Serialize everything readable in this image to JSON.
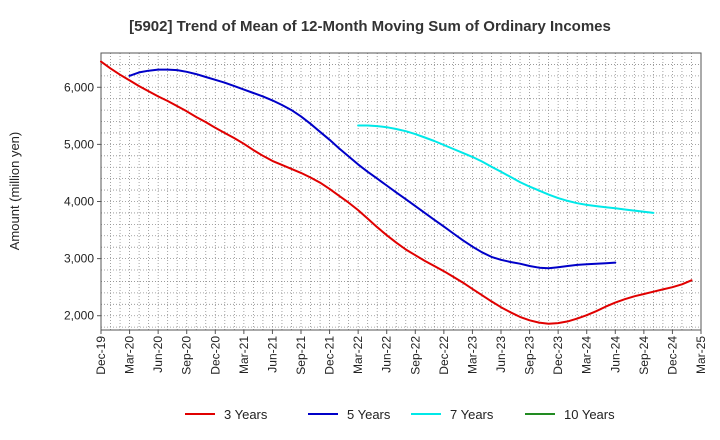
{
  "chart_data": {
    "type": "line",
    "title": "[5902]  Trend of Mean of 12-Month Moving Sum of Ordinary Incomes",
    "xlabel": "",
    "ylabel": "Amount (million yen)",
    "ylim": [
      1750,
      6600
    ],
    "yticks": [
      2000,
      3000,
      4000,
      5000,
      6000
    ],
    "ytick_labels": [
      "2,000",
      "3,000",
      "4,000",
      "5,000",
      "6,000"
    ],
    "grid": true,
    "legend_position": "bottom",
    "x_months": [
      "Dec-19",
      "Jan-20",
      "Feb-20",
      "Mar-20",
      "Apr-20",
      "May-20",
      "Jun-20",
      "Jul-20",
      "Aug-20",
      "Sep-20",
      "Oct-20",
      "Nov-20",
      "Dec-20",
      "Jan-21",
      "Feb-21",
      "Mar-21",
      "Apr-21",
      "May-21",
      "Jun-21",
      "Jul-21",
      "Aug-21",
      "Sep-21",
      "Oct-21",
      "Nov-21",
      "Dec-21",
      "Jan-22",
      "Feb-22",
      "Mar-22",
      "Apr-22",
      "May-22",
      "Jun-22",
      "Jul-22",
      "Aug-22",
      "Sep-22",
      "Oct-22",
      "Nov-22",
      "Dec-22",
      "Jan-23",
      "Feb-23",
      "Mar-23",
      "Apr-23",
      "May-23",
      "Jun-23",
      "Jul-23",
      "Aug-23",
      "Sep-23",
      "Oct-23",
      "Nov-23",
      "Dec-23",
      "Jan-24",
      "Feb-24",
      "Mar-24",
      "Apr-24",
      "May-24",
      "Jun-24",
      "Jul-24",
      "Aug-24",
      "Sep-24",
      "Oct-24",
      "Nov-24",
      "Dec-24",
      "Jan-25",
      "Feb-25",
      "Mar-25"
    ],
    "x_tick_labels": [
      "Dec-19",
      "Mar-20",
      "Jun-20",
      "Sep-20",
      "Dec-20",
      "Mar-21",
      "Jun-21",
      "Sep-21",
      "Dec-21",
      "Mar-22",
      "Jun-22",
      "Sep-22",
      "Dec-22",
      "Mar-23",
      "Jun-23",
      "Sep-23",
      "Dec-23",
      "Mar-24",
      "Jun-24",
      "Sep-24",
      "Dec-24",
      "Mar-25"
    ],
    "series": [
      {
        "name": "3 Years",
        "color": "#e00000",
        "start_index": 0,
        "values": [
          6450,
          6330,
          6220,
          6120,
          6020,
          5930,
          5840,
          5760,
          5670,
          5580,
          5480,
          5390,
          5290,
          5200,
          5110,
          5010,
          4900,
          4800,
          4710,
          4640,
          4570,
          4500,
          4420,
          4330,
          4220,
          4100,
          3980,
          3850,
          3700,
          3550,
          3410,
          3280,
          3160,
          3060,
          2960,
          2870,
          2780,
          2680,
          2580,
          2470,
          2360,
          2250,
          2150,
          2060,
          1980,
          1920,
          1880,
          1860,
          1870,
          1900,
          1950,
          2010,
          2080,
          2160,
          2230,
          2290,
          2340,
          2380,
          2420,
          2460,
          2500,
          2550,
          2620
        ]
      },
      {
        "name": "5 Years",
        "color": "#0000c8",
        "start_index": 3,
        "values": [
          6200,
          6260,
          6290,
          6310,
          6310,
          6300,
          6270,
          6230,
          6180,
          6130,
          6080,
          6020,
          5960,
          5900,
          5840,
          5770,
          5690,
          5600,
          5490,
          5360,
          5220,
          5080,
          4930,
          4790,
          4650,
          4520,
          4400,
          4280,
          4160,
          4040,
          3920,
          3800,
          3680,
          3560,
          3440,
          3320,
          3210,
          3110,
          3030,
          2980,
          2940,
          2910,
          2870,
          2840,
          2830,
          2850,
          2870,
          2890,
          2900,
          2910,
          2920,
          2930
        ]
      },
      {
        "name": "7 Years",
        "color": "#00e8e8",
        "start_index": 27,
        "values": [
          5330,
          5330,
          5320,
          5300,
          5270,
          5230,
          5180,
          5120,
          5060,
          4990,
          4920,
          4850,
          4780,
          4700,
          4610,
          4520,
          4430,
          4340,
          4260,
          4190,
          4120,
          4060,
          4010,
          3970,
          3940,
          3920,
          3900,
          3880,
          3860,
          3840,
          3820,
          3800
        ]
      },
      {
        "name": "10 Years",
        "color": "#228b22",
        "start_index": 0,
        "values": []
      }
    ]
  }
}
